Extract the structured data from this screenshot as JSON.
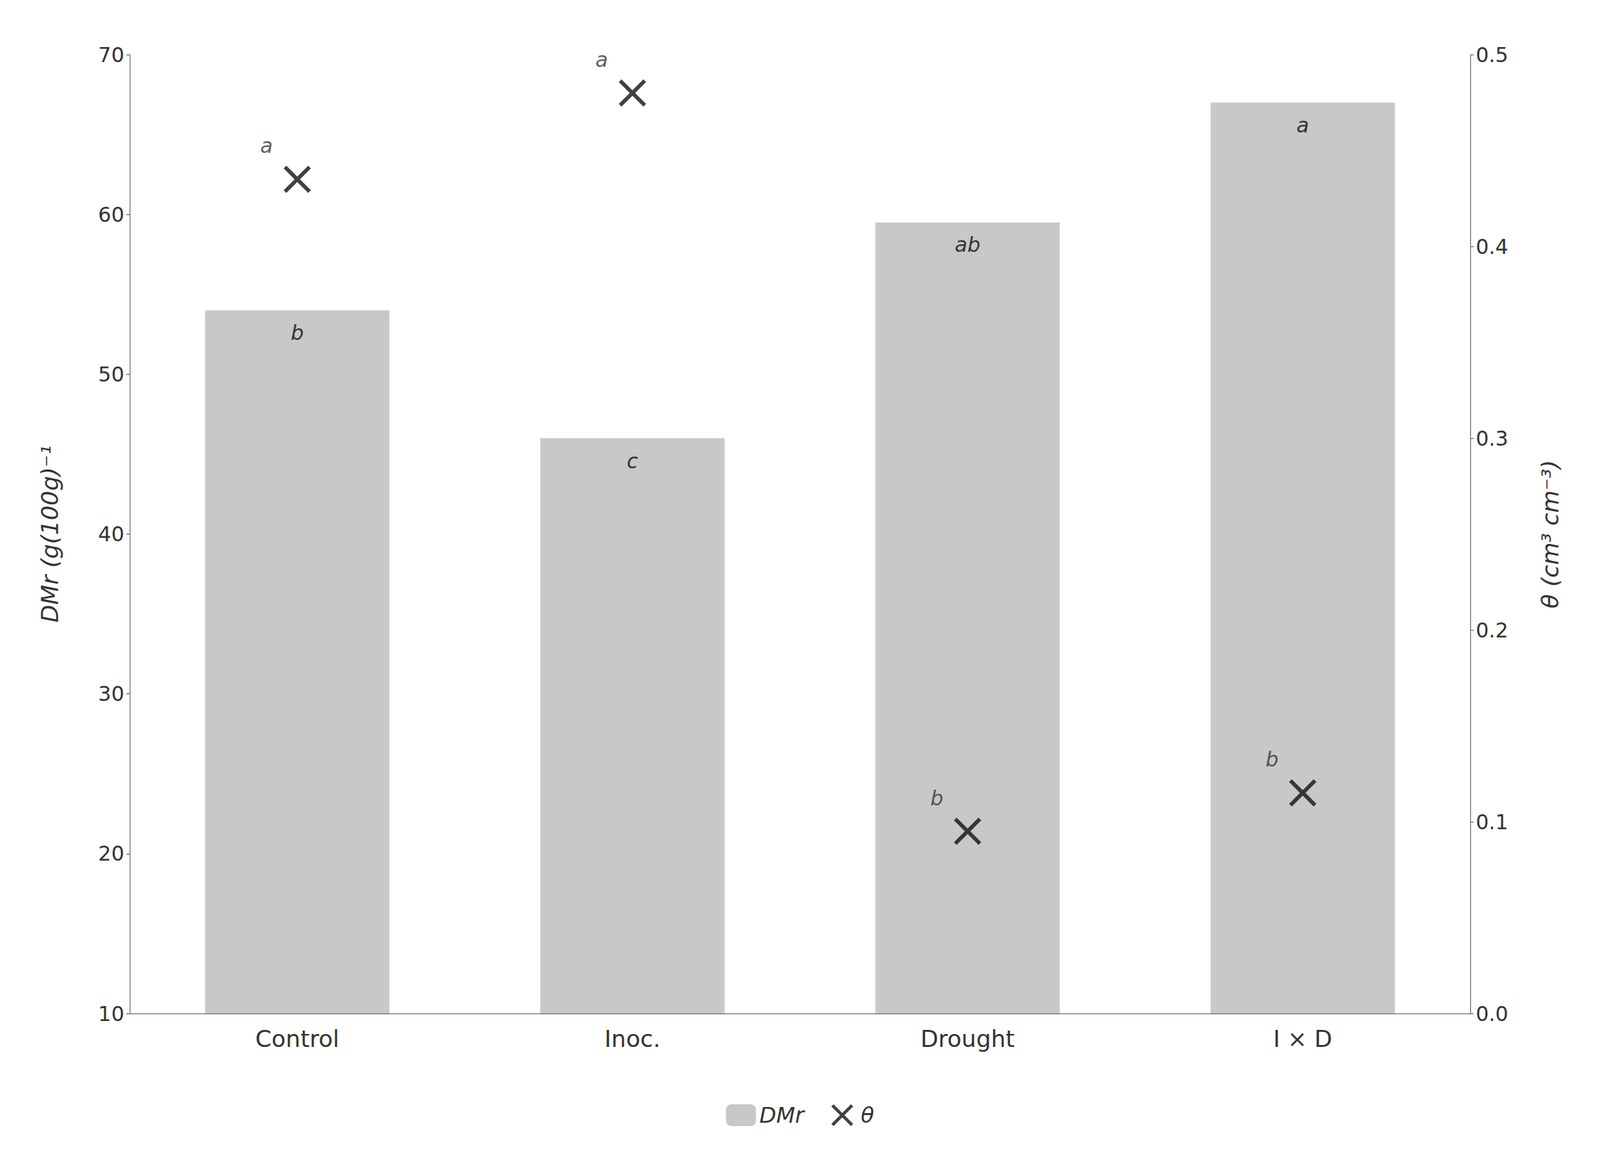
{
  "chart_data": {
    "type": "bar",
    "categories": [
      "Control",
      "Inoc.",
      "Drought",
      "I × D"
    ],
    "series": [
      {
        "name": "DMr",
        "type": "bar",
        "color": "#c8c8c8",
        "axis": "y",
        "values": [
          54.0,
          46.0,
          59.5,
          67.0
        ]
      },
      {
        "name": "θ",
        "type": "scatter",
        "marker": "x",
        "color": "#111111",
        "axis": "y2",
        "values": [
          0.435,
          0.48,
          0.095,
          0.115
        ]
      }
    ],
    "ylabel": "DMr (g(100g)⁻¹",
    "y2label": "θ (cm³ cm⁻³)",
    "ylim": [
      10,
      70
    ],
    "yticks": [
      10,
      20,
      30,
      40,
      50,
      60,
      70
    ],
    "y2lim": [
      0,
      0.5
    ],
    "y2ticks": [
      {
        "value": 0,
        "label": "0.0"
      },
      {
        "value": 0.1,
        "label": "0.1"
      },
      {
        "value": 0.2,
        "label": "0.2"
      },
      {
        "value": 0.3,
        "label": "0.3"
      },
      {
        "value": 0.4,
        "label": "0.4"
      },
      {
        "value": 0.5,
        "label": "0.5"
      }
    ],
    "grid": false,
    "legend": "bottom",
    "annotations": [
      {
        "text": "b",
        "series": "DMr",
        "category": "Control"
      },
      {
        "text": "c",
        "series": "DMr",
        "category": "Inoc."
      },
      {
        "text": "ab",
        "series": "DMr",
        "category": "Drought"
      },
      {
        "text": "a",
        "series": "DMr",
        "category": "I × D"
      },
      {
        "text": "a",
        "series": "θ",
        "category": "Control"
      },
      {
        "text": "a",
        "series": "θ",
        "category": "Inoc."
      },
      {
        "text": "b",
        "series": "θ",
        "category": "Drought"
      },
      {
        "text": "b",
        "series": "θ",
        "category": "I × D"
      }
    ]
  }
}
